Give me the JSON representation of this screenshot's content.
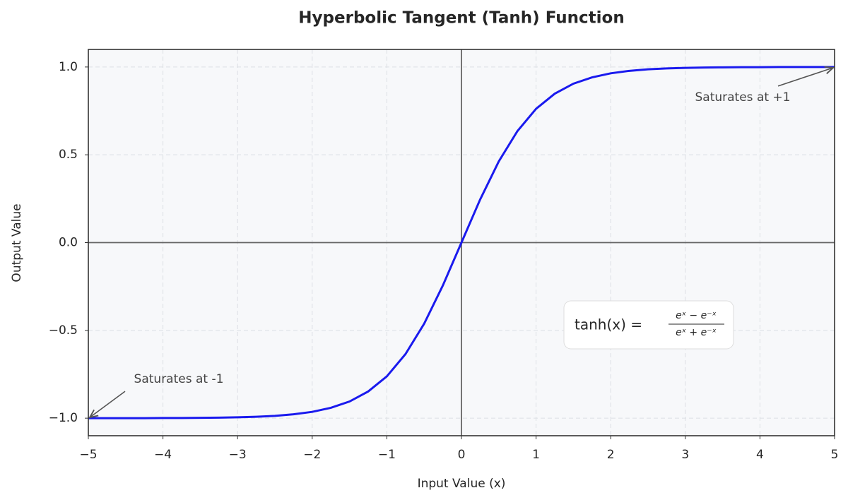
{
  "chart_data": {
    "type": "line",
    "title": "Hyperbolic Tangent (Tanh) Function",
    "xlabel": "Input Value (x)",
    "ylabel": "Output Value",
    "x": [
      -5,
      -4.75,
      -4.5,
      -4.25,
      -4,
      -3.75,
      -3.5,
      -3.25,
      -3,
      -2.75,
      -2.5,
      -2.25,
      -2,
      -1.75,
      -1.5,
      -1.25,
      -1,
      -0.75,
      -0.5,
      -0.25,
      0,
      0.25,
      0.5,
      0.75,
      1,
      1.25,
      1.5,
      1.75,
      2,
      2.25,
      2.5,
      2.75,
      3,
      3.25,
      3.5,
      3.75,
      4,
      4.25,
      4.5,
      4.75,
      5
    ],
    "series": [
      {
        "name": "tanh(x)",
        "color": "#1a1aee",
        "values": [
          -1.0,
          -1.0,
          -1.0,
          -1.0,
          -0.999,
          -0.999,
          -0.998,
          -0.997,
          -0.995,
          -0.992,
          -0.987,
          -0.978,
          -0.964,
          -0.941,
          -0.905,
          -0.848,
          -0.762,
          -0.635,
          -0.462,
          -0.245,
          0,
          0.245,
          0.462,
          0.635,
          0.762,
          0.848,
          0.905,
          0.941,
          0.964,
          0.978,
          0.987,
          0.992,
          0.995,
          0.997,
          0.998,
          0.999,
          0.999,
          1.0,
          1.0,
          1.0,
          1.0
        ]
      }
    ],
    "xlim": [
      -5,
      5
    ],
    "ylim": [
      -1.1,
      1.1
    ],
    "xticks": [
      {
        "value": -5,
        "label": "−5"
      },
      {
        "value": -4,
        "label": "−4"
      },
      {
        "value": -3,
        "label": "−3"
      },
      {
        "value": -2,
        "label": "−2"
      },
      {
        "value": -1,
        "label": "−1"
      },
      0,
      1,
      2,
      3,
      4,
      5
    ],
    "yticks": [
      {
        "value": -1,
        "label": "−1.0"
      },
      {
        "value": -0.5,
        "label": "−0.5"
      },
      {
        "value": 0,
        "label": "0.0"
      },
      0.5,
      {
        "value": 1,
        "label": "1.0"
      }
    ],
    "grid": true,
    "annotations": [
      {
        "text": "Saturates at +1",
        "xy": [
          5,
          1
        ]
      },
      {
        "text": "Saturates at -1",
        "xy": [
          -5,
          -1
        ]
      }
    ],
    "formula": {
      "lhs": "tanh(x) =",
      "numerator": "eˣ − e⁻ˣ",
      "denominator": "eˣ + e⁻ˣ"
    }
  }
}
